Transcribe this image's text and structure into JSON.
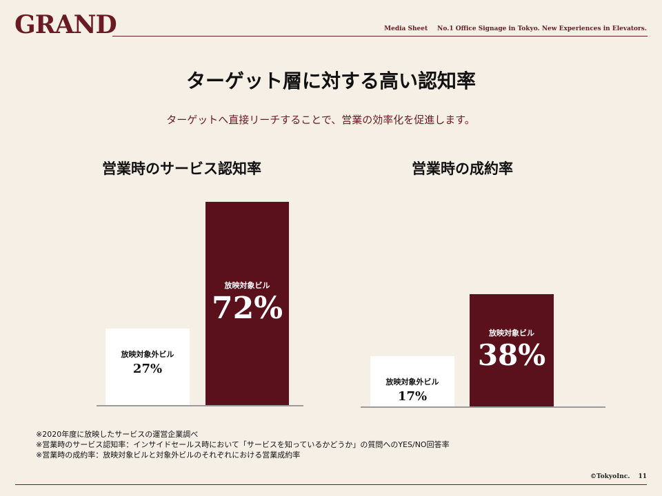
{
  "header": {
    "logo": "GRAND",
    "media": "Media Sheet",
    "tagline": "No.1 Office Signage in Tokyo. New Experiences in Elevators."
  },
  "title": "ターゲット層に対する高い認知率",
  "subtitle": "ターゲットへ直接リーチすることで、営業の効率化を促進します。",
  "colors": {
    "accent": "#5a111b",
    "background": "#f6efe6",
    "muted_bar": "#ffffff"
  },
  "chart_data": [
    {
      "type": "bar",
      "title": "営業時のサービス認知率",
      "categories": [
        "放映対象外ビル",
        "放映対象ビル"
      ],
      "values": [
        27,
        72
      ],
      "value_labels": [
        "27%",
        "72%"
      ],
      "unit": "%",
      "ylim": [
        0,
        100
      ]
    },
    {
      "type": "bar",
      "title": "営業時の成約率",
      "categories": [
        "放映対象外ビル",
        "放映対象ビル"
      ],
      "values": [
        17,
        38
      ],
      "value_labels": [
        "17%",
        "38%"
      ],
      "unit": "%",
      "ylim": [
        0,
        100
      ]
    }
  ],
  "notes": [
    "※2020年度に放映したサービスの運営企業調べ",
    "※営業時のサービス認知率：インサイドセールス時において「サービスを知っているかどうか」の質問へのYES/NO回答率",
    "※営業時の成約率：放映対象ビルと対象外ビルのそれぞれにおける営業成約率"
  ],
  "footer": {
    "copyright": "©TokyoInc.",
    "page": "11"
  }
}
